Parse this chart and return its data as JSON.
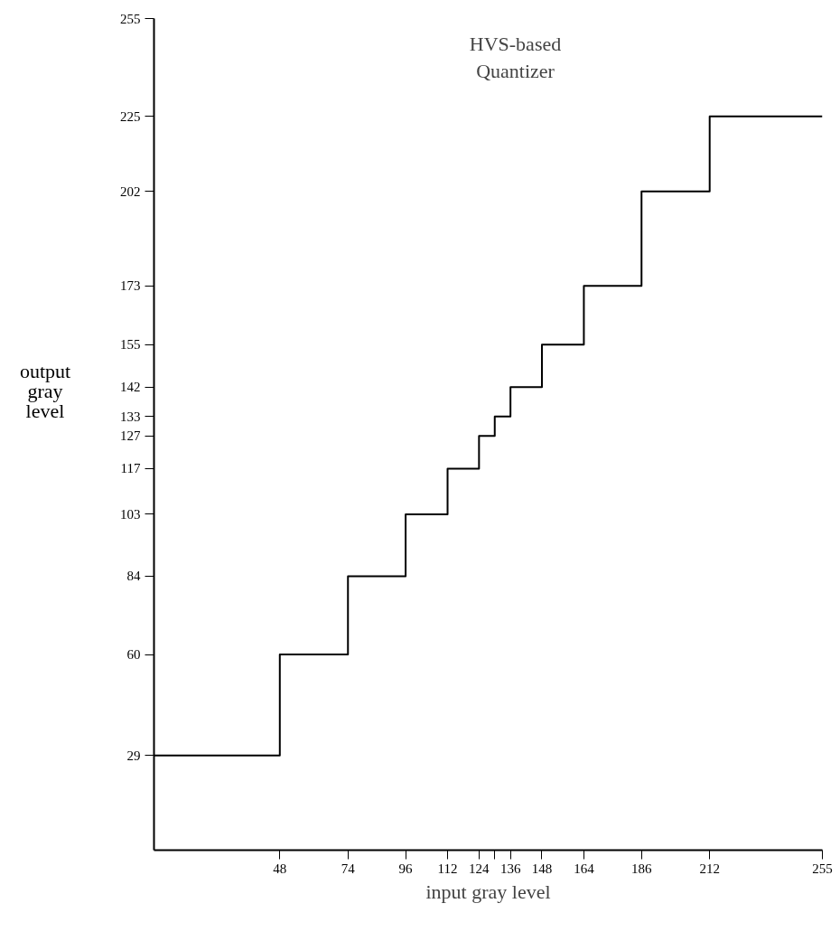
{
  "chart_data": {
    "type": "step",
    "title": "HVS-based Quantizer",
    "xlabel": "input gray level",
    "ylabel": "output gray level",
    "x": [
      0,
      48,
      74,
      96,
      112,
      124,
      130,
      136,
      148,
      164,
      186,
      212,
      255
    ],
    "values": [
      29,
      60,
      84,
      103,
      117,
      127,
      133,
      142,
      155,
      173,
      202,
      225,
      225
    ],
    "color": "#000000",
    "xlim": [
      0,
      255
    ],
    "ylim": [
      0,
      255
    ],
    "xticks": [
      48,
      74,
      96,
      112,
      124,
      {
        "value": 130,
        "label": null
      },
      136,
      148,
      164,
      186,
      212,
      255
    ],
    "yticks": [
      29,
      60,
      84,
      103,
      117,
      127,
      133,
      142,
      155,
      173,
      202,
      225,
      255
    ],
    "grid": false
  }
}
